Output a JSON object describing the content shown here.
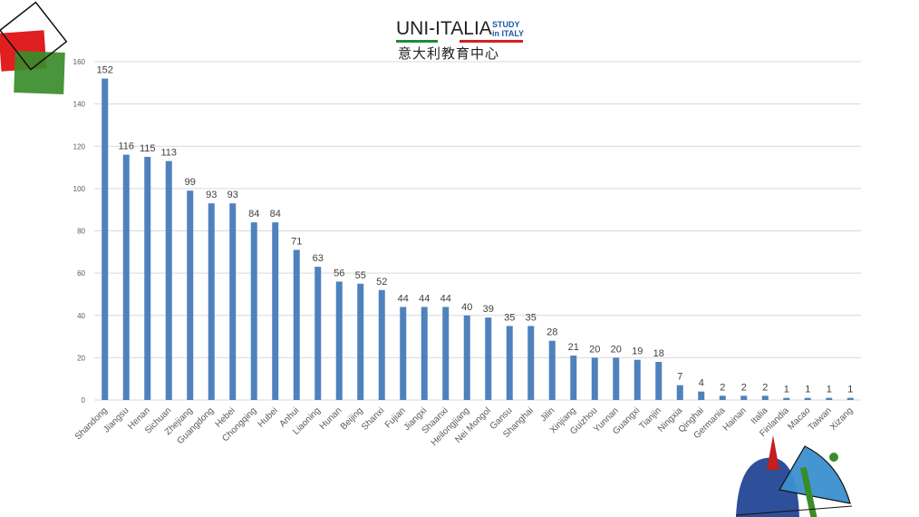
{
  "logo": {
    "main_text": "UNI-ITALIA",
    "side_text": "STUDY\nin ITALY",
    "chinese_text": "意大利教育中心"
  },
  "colors": {
    "bar": "#4f81bd",
    "grid": "#d9d9d9",
    "tick_text": "#595959",
    "label_text": "#404040"
  },
  "chart_data": {
    "type": "bar",
    "title": "",
    "xlabel": "",
    "ylabel": "",
    "ylim": [
      0,
      160
    ],
    "yticks": [
      0,
      20,
      40,
      60,
      80,
      100,
      120,
      140,
      160
    ],
    "grid": true,
    "legend": "none",
    "categories": [
      "Shandong",
      "Jiangsu",
      "Henan",
      "Sichuan",
      "Zhejiang",
      "Guangdong",
      "Hebei",
      "Chongqing",
      "Hubei",
      "Anhui",
      "Liaoning",
      "Hunan",
      "Beijing",
      "Shanxi",
      "Fujian",
      "Jiangxi",
      "Shaanxi",
      "Heilongjiang",
      "Nei Mongol",
      "Gansu",
      "Shanghai",
      "Jilin",
      "Xinjiang",
      "Guizhou",
      "Yunnan",
      "Guangxi",
      "Tianjin",
      "Ningxia",
      "Qinghai",
      "Germania",
      "Hainan",
      "Italia",
      "Finlandia",
      "Macao",
      "Taiwan",
      "Xizang"
    ],
    "values": [
      152,
      116,
      115,
      113,
      99,
      93,
      93,
      84,
      84,
      71,
      63,
      56,
      55,
      52,
      44,
      44,
      44,
      40,
      39,
      35,
      35,
      28,
      21,
      20,
      20,
      19,
      18,
      7,
      4,
      2,
      2,
      2,
      1,
      1,
      1,
      1
    ]
  }
}
